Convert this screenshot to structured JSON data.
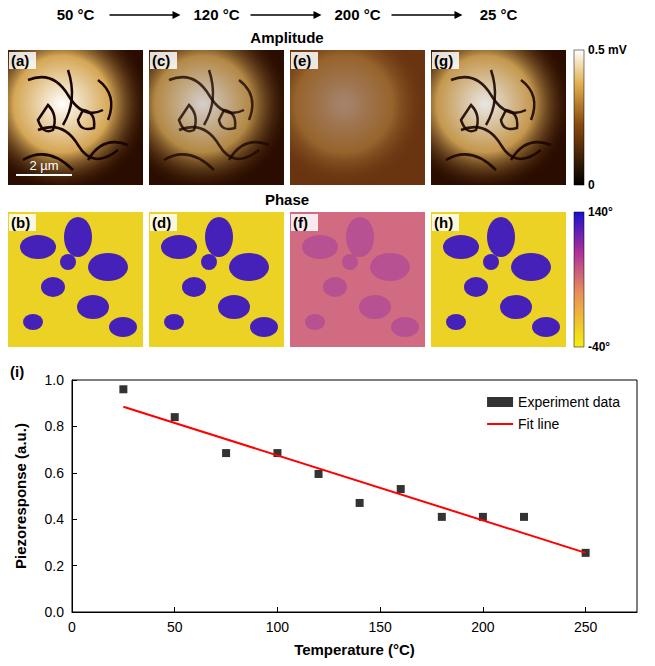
{
  "figure": {
    "temperatures": [
      "50 °C",
      "120 °C",
      "200 °C",
      "25 °C"
    ],
    "amplitude": {
      "title": "Amplitude",
      "panels": [
        "(a)",
        "(c)",
        "(e)",
        "(g)"
      ],
      "scale_bar": "2 µm",
      "colorbar": {
        "range": [
          0,
          0.5
        ],
        "ticks": [
          0,
          {
            "value": 0.5,
            "label": "0.5 mV"
          }
        ]
      }
    },
    "phase": {
      "title": "Phase",
      "panels": [
        "(b)",
        "(d)",
        "(f)",
        "(h)"
      ],
      "colorbar": {
        "range": [
          -40,
          140
        ],
        "ticks": [
          {
            "value": -40,
            "label": "-40°"
          },
          {
            "value": 140,
            "label": "140°"
          }
        ]
      }
    }
  },
  "chart_data": {
    "type": "scatter",
    "title": "(i)",
    "x_label": "Temperature (°C)",
    "y_label": "Piezoresponse (a.u.)",
    "xlim": [
      0,
      275
    ],
    "xticks": [
      0,
      50,
      100,
      150,
      200,
      250
    ],
    "ylim": [
      0,
      1.0
    ],
    "yticks": [
      {
        "value": 0,
        "label": "0.0"
      },
      {
        "value": 0.2,
        "label": "0.2"
      },
      {
        "value": 0.4,
        "label": "0.4"
      },
      {
        "value": 0.6,
        "label": "0.6"
      },
      {
        "value": 0.8,
        "label": "0.8"
      },
      {
        "value": 1.0,
        "label": "1.0"
      }
    ],
    "grid": false,
    "legend": "upper right",
    "series": [
      {
        "name": "Experiment data",
        "type": "scatter",
        "color": "#000000",
        "marker": "square",
        "x": [
          25,
          50,
          75,
          100,
          120,
          140,
          160,
          180,
          200,
          220,
          250
        ],
        "values": [
          0.96,
          0.84,
          0.685,
          0.685,
          0.595,
          0.47,
          0.53,
          0.41,
          0.41,
          0.41,
          0.255
        ]
      },
      {
        "name": "Fit line",
        "type": "line",
        "color": "#ff0000",
        "marker": "none",
        "line_style": "solid",
        "x": [
          25,
          250
        ],
        "values": [
          0.885,
          0.255
        ]
      }
    ]
  }
}
